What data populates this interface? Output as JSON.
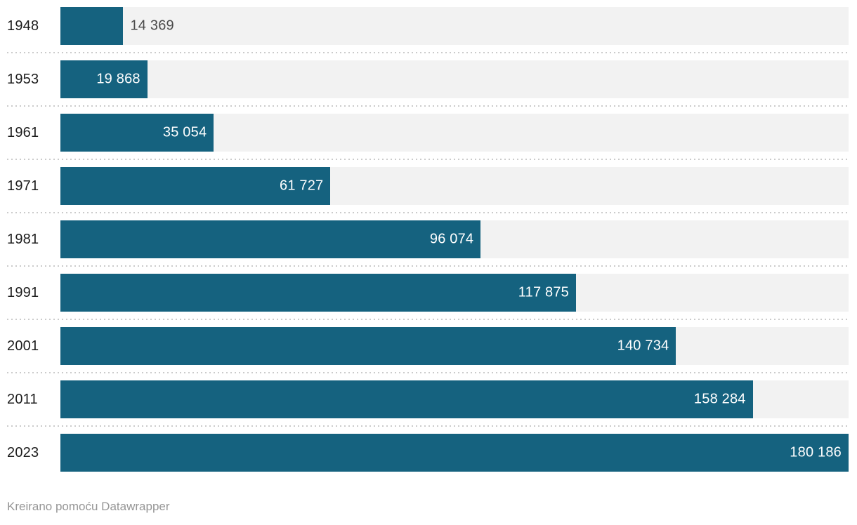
{
  "chart_data": {
    "type": "bar",
    "orientation": "horizontal",
    "title": "",
    "xlabel": "",
    "ylabel": "",
    "legend": "none",
    "grid": "dotted-row-separators",
    "xlim": [
      0,
      180186
    ],
    "categories": [
      "1948",
      "1953",
      "1961",
      "1971",
      "1981",
      "1991",
      "2001",
      "2011",
      "2023"
    ],
    "values": [
      14369,
      19868,
      35054,
      61727,
      96074,
      117875,
      140734,
      158284,
      180186
    ],
    "value_labels": [
      "14 369",
      "19 868",
      "35 054",
      "61 727",
      "96 074",
      "117 875",
      "140 734",
      "158 284",
      "180 186"
    ],
    "bar_color": "#15627f",
    "track_color": "#f2f2f2",
    "label_color_inside": "#ffffff",
    "label_color_outside": "#4a4a4a",
    "category_color": "#1d1d1d",
    "separator_color": "#cbcbcb"
  },
  "footer": {
    "attribution": "Kreirano pomoću Datawrapper"
  }
}
